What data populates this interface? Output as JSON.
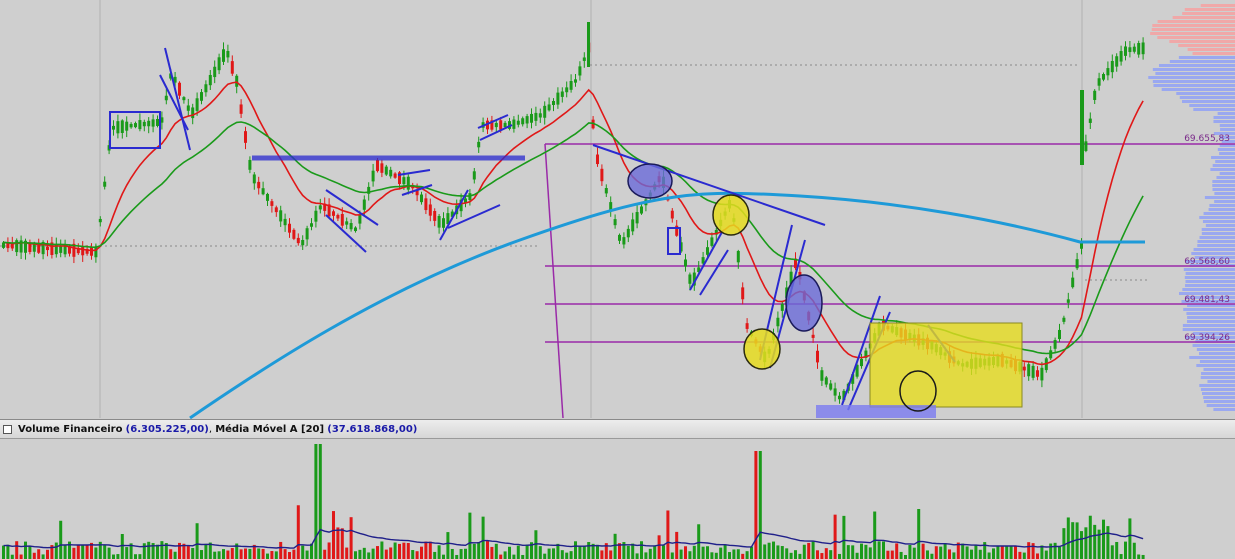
{
  "colors": {
    "background": "#cfcfcf",
    "bull": "#1a9a1a",
    "bear": "#e01818",
    "ema_fast": "#e01818",
    "ema_mid": "#1a9a1a",
    "ema_slow": "#1e9ad8",
    "volume_ma": "#20208a",
    "level_line": "#9a2aa8",
    "annotation_blue": "#2a2ad0",
    "highlight_yellow": "#e6dc1e"
  },
  "price_levels": [
    "69.655,83",
    "69.568,60",
    "69.481,43",
    "69.394,26"
  ],
  "volume_panel": {
    "label": "Volume Financeiro",
    "value": "(6.305.225,00)",
    "ma_label": "Média Móvel A [20]",
    "ma_value": "(37.618.868,00)"
  },
  "chart_data": {
    "type": "candlestick",
    "title": "",
    "grid": false,
    "levels": [
      69655.83,
      69568.6,
      69481.43,
      69394.26
    ],
    "candle_series": "price",
    "series": [
      {
        "name": "Volume Financeiro",
        "type": "bar"
      },
      {
        "name": "Média Móvel A [20]",
        "type": "line"
      }
    ],
    "volume_last": 6305225.0,
    "volume_ma_last": 37618868.0
  }
}
